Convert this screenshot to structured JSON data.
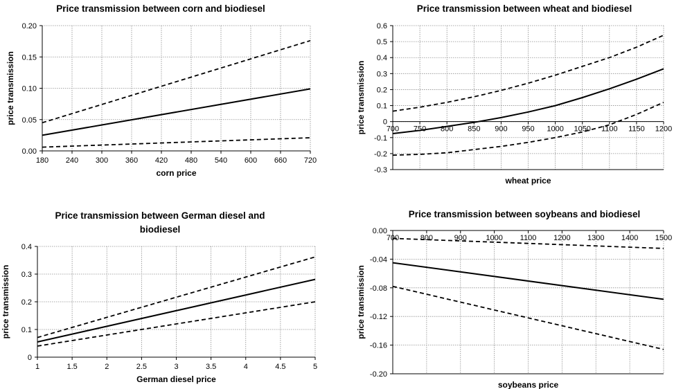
{
  "chart_data": [
    {
      "type": "line",
      "title": "Price transmission between corn and biodiesel",
      "xlabel": "corn price",
      "ylabel": "price transmission",
      "xlim": [
        180,
        720
      ],
      "ylim": [
        0,
        0.2
      ],
      "x_ticks": [
        180,
        240,
        300,
        360,
        420,
        480,
        540,
        600,
        660,
        720
      ],
      "x_tick_labels": [
        "180",
        "240",
        "300",
        "360",
        "420",
        "480",
        "540",
        "600",
        "660",
        "720"
      ],
      "y_ticks": [
        0,
        0.05,
        0.1,
        0.15,
        0.2
      ],
      "y_tick_labels": [
        "0.00",
        "0.05",
        "0.10",
        "0.15",
        "0.20"
      ],
      "x_tick_labels_at_zero": false,
      "grid": true,
      "series": [
        {
          "style": "solid",
          "x": [
            180,
            720
          ],
          "y": [
            0.025,
            0.099
          ]
        },
        {
          "style": "dashed",
          "x": [
            180,
            720
          ],
          "y": [
            0.045,
            0.176
          ]
        },
        {
          "style": "dashed",
          "x": [
            180,
            720
          ],
          "y": [
            0.006,
            0.021
          ]
        }
      ]
    },
    {
      "type": "line",
      "title": "Price transmission between wheat and biodiesel",
      "xlabel": "wheat price",
      "ylabel": "price transmission",
      "xlim": [
        700,
        1200
      ],
      "ylim": [
        -0.3,
        0.6
      ],
      "x_ticks": [
        700,
        750,
        800,
        850,
        900,
        950,
        1000,
        1050,
        1100,
        1150,
        1200
      ],
      "x_tick_labels": [
        "700",
        "750",
        "800",
        "850",
        "900",
        "950",
        "1000",
        "1050",
        "1100",
        "1150",
        "1200"
      ],
      "y_ticks": [
        -0.3,
        -0.2,
        -0.1,
        0,
        0.1,
        0.2,
        0.3,
        0.4,
        0.5,
        0.6
      ],
      "y_tick_labels": [
        "-0.3",
        "-0.2",
        "-0.1",
        "0",
        "0.1",
        "0.2",
        "0.3",
        "0.4",
        "0.5",
        "0.6"
      ],
      "x_tick_labels_at_zero": true,
      "grid": true,
      "series": [
        {
          "style": "solid",
          "x": [
            700,
            750,
            800,
            850,
            900,
            950,
            1000,
            1050,
            1100,
            1150,
            1200
          ],
          "y": [
            -0.075,
            -0.055,
            -0.03,
            -0.005,
            0.025,
            0.06,
            0.1,
            0.15,
            0.205,
            0.265,
            0.33
          ]
        },
        {
          "style": "dashed",
          "x": [
            700,
            750,
            800,
            850,
            900,
            950,
            1000,
            1050,
            1100,
            1150,
            1200
          ],
          "y": [
            0.065,
            0.09,
            0.12,
            0.155,
            0.195,
            0.24,
            0.29,
            0.345,
            0.4,
            0.465,
            0.54
          ]
        },
        {
          "style": "dashed",
          "x": [
            700,
            750,
            800,
            850,
            900,
            950,
            1000,
            1050,
            1100,
            1150,
            1200
          ],
          "y": [
            -0.21,
            -0.205,
            -0.195,
            -0.175,
            -0.155,
            -0.13,
            -0.1,
            -0.065,
            -0.02,
            0.045,
            0.12
          ]
        }
      ]
    },
    {
      "type": "line",
      "title": "Price transmission between German diesel and biodiesel",
      "title_lines": [
        "Price transmission between German diesel and",
        "biodiesel"
      ],
      "xlabel": "German diesel price",
      "ylabel": "price transmission",
      "xlim": [
        1,
        5
      ],
      "ylim": [
        0,
        0.4
      ],
      "x_ticks": [
        1,
        1.5,
        2,
        2.5,
        3,
        3.5,
        4,
        4.5,
        5
      ],
      "x_tick_labels": [
        "1",
        "1.5",
        "2",
        "2.5",
        "3",
        "3.5",
        "4",
        "4.5",
        "5"
      ],
      "y_ticks": [
        0,
        0.1,
        0.2,
        0.3,
        0.4
      ],
      "y_tick_labels": [
        "0",
        "0.1",
        "0.2",
        "0.3",
        "0.4"
      ],
      "x_tick_labels_at_zero": false,
      "grid": true,
      "series": [
        {
          "style": "solid",
          "x": [
            1,
            5
          ],
          "y": [
            0.055,
            0.281
          ]
        },
        {
          "style": "dashed",
          "x": [
            1,
            5
          ],
          "y": [
            0.071,
            0.362
          ]
        },
        {
          "style": "dashed",
          "x": [
            1,
            5
          ],
          "y": [
            0.04,
            0.2
          ]
        }
      ]
    },
    {
      "type": "line",
      "title": "Price transmission between soybeans and biodiesel",
      "xlabel": "soybeans price",
      "ylabel": "price transmission",
      "xlim": [
        700,
        1500
      ],
      "ylim": [
        -0.2,
        0
      ],
      "x_ticks": [
        700,
        800,
        900,
        1000,
        1100,
        1200,
        1300,
        1400,
        1500
      ],
      "x_tick_labels": [
        "700",
        "800",
        "900",
        "1000",
        "1100",
        "1200",
        "1300",
        "1400",
        "1500"
      ],
      "y_ticks": [
        -0.2,
        -0.16,
        -0.12,
        -0.08,
        -0.04,
        0
      ],
      "y_tick_labels": [
        "-0.20",
        "-0.16",
        "-0.12",
        "-0.08",
        "-0.04",
        "0.00"
      ],
      "x_tick_labels_at_zero": true,
      "grid": true,
      "series": [
        {
          "style": "solid",
          "x": [
            700,
            1500
          ],
          "y": [
            -0.045,
            -0.096
          ]
        },
        {
          "style": "dashed",
          "x": [
            700,
            1500
          ],
          "y": [
            -0.011,
            -0.025
          ]
        },
        {
          "style": "dashed",
          "x": [
            700,
            1500
          ],
          "y": [
            -0.078,
            -0.166
          ]
        }
      ]
    }
  ]
}
